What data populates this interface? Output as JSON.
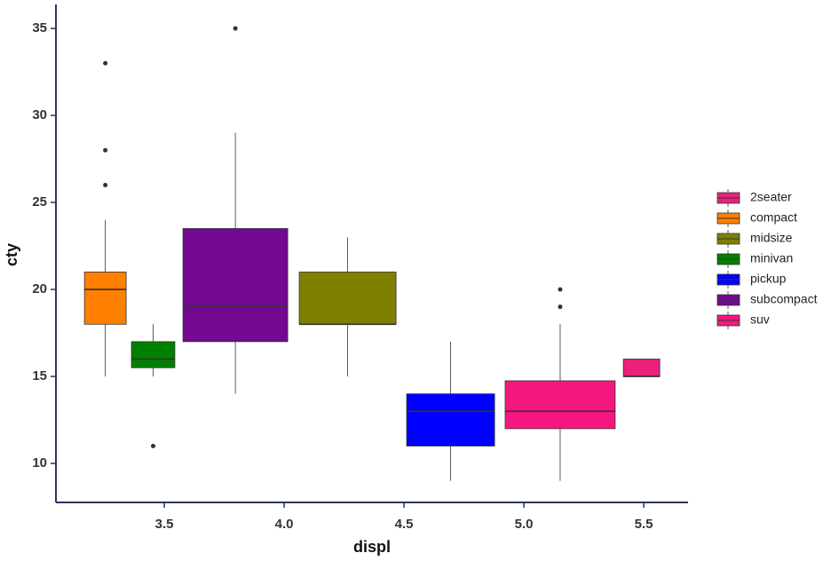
{
  "chart_data": {
    "type": "box",
    "x_label": "displ",
    "y_label": "cty",
    "xlim": [
      3.048,
      5.685
    ],
    "ylim": [
      7.76,
      36.38
    ],
    "xticks": [
      3.5,
      {
        "value": 4,
        "label": "4.0"
      },
      4.5,
      {
        "value": 5,
        "label": "5.0"
      },
      5.5
    ],
    "yticks": [
      10,
      15,
      20,
      25,
      30,
      35
    ],
    "legend_position": "right",
    "legend_order": [
      6,
      0,
      3,
      1,
      4,
      2,
      5
    ],
    "series": [
      {
        "name": "compact",
        "color": "#ff7f00",
        "x_range": [
          3.167,
          3.341
        ],
        "whisker_low": 15,
        "q1": 18,
        "median": 20,
        "q3": 21,
        "whisker_high": 24,
        "outliers": [
          33,
          28,
          26
        ]
      },
      {
        "name": "minivan",
        "color": "#008000",
        "x_range": [
          3.363,
          3.544
        ],
        "whisker_low": 15,
        "q1": 15.5,
        "median": 16,
        "q3": 17,
        "whisker_high": 18,
        "outliers": [
          11
        ]
      },
      {
        "name": "subcompact",
        "color": "#730891",
        "x_range": [
          3.578,
          4.015
        ],
        "whisker_low": 14,
        "q1": 17,
        "median": 19,
        "q3": 23.5,
        "whisker_high": 29,
        "outliers": [
          35
        ]
      },
      {
        "name": "midsize",
        "color": "#808000",
        "x_range": [
          4.063,
          4.467
        ],
        "whisker_low": 15,
        "q1": 18,
        "median": 18,
        "q3": 21,
        "whisker_high": 23,
        "outliers": []
      },
      {
        "name": "pickup",
        "color": "#0000ff",
        "x_range": [
          4.511,
          4.878
        ],
        "whisker_low": 9,
        "q1": 11,
        "median": 13,
        "q3": 14,
        "whisker_high": 17,
        "outliers": []
      },
      {
        "name": "suv",
        "color": "#f5177f",
        "x_range": [
          4.922,
          5.381
        ],
        "whisker_low": 9,
        "q1": 12,
        "median": 13,
        "q3": 14.75,
        "whisker_high": 18,
        "outliers": [
          19,
          20
        ]
      },
      {
        "name": "2seater",
        "color": "#e8217a",
        "x_range": [
          5.415,
          5.567
        ],
        "whisker_low": 15,
        "q1": 15,
        "median": 15,
        "q3": 16,
        "whisker_high": 16,
        "outliers": []
      }
    ]
  }
}
